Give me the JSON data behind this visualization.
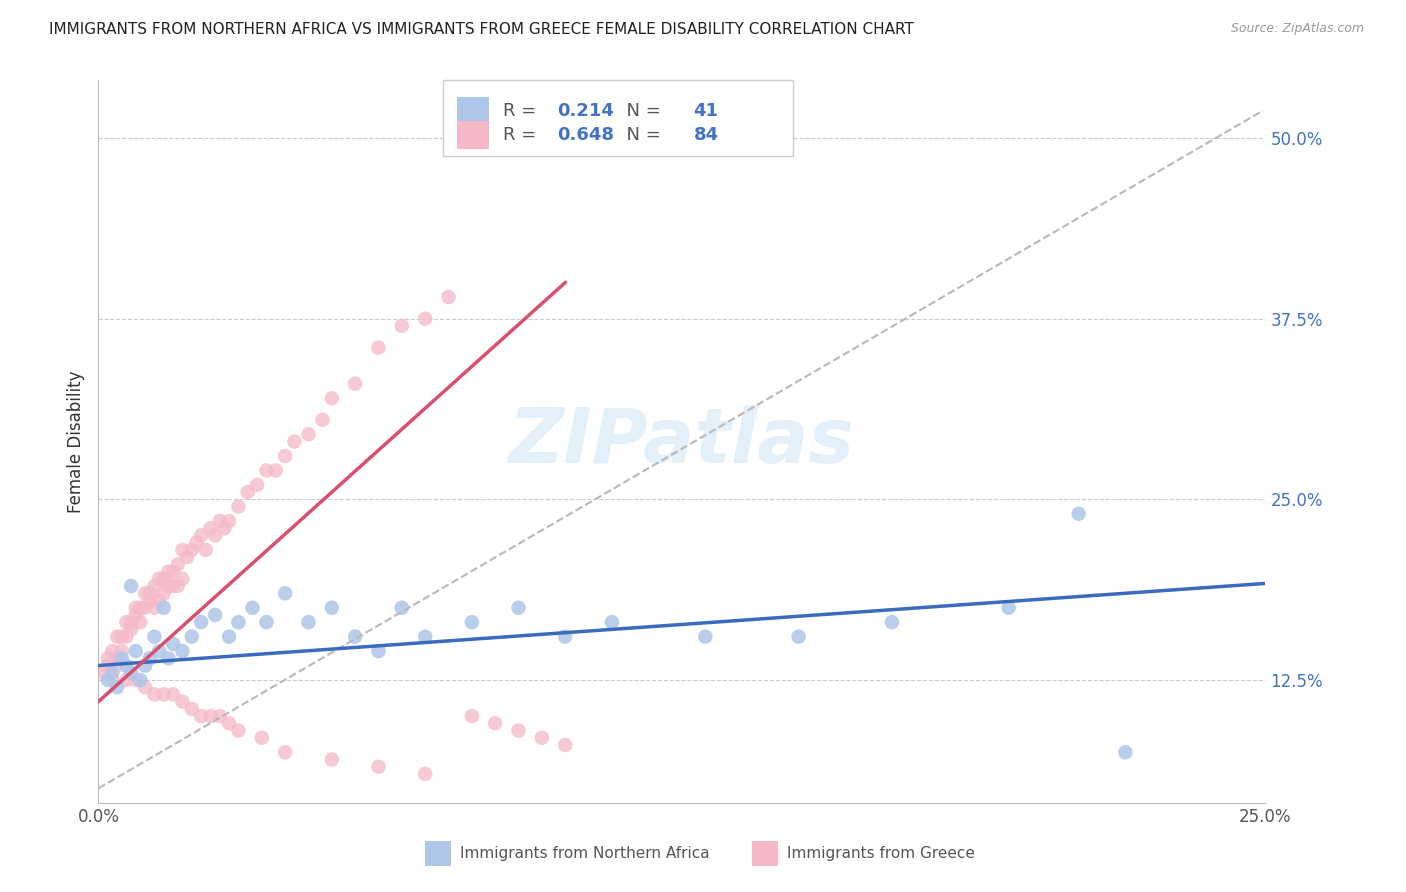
{
  "title": "IMMIGRANTS FROM NORTHERN AFRICA VS IMMIGRANTS FROM GREECE FEMALE DISABILITY CORRELATION CHART",
  "source": "Source: ZipAtlas.com",
  "xlabel_blue": "Immigrants from Northern Africa",
  "xlabel_pink": "Immigrants from Greece",
  "ylabel": "Female Disability",
  "R_blue": 0.214,
  "N_blue": 41,
  "R_pink": 0.648,
  "N_pink": 84,
  "xlim": [
    0.0,
    0.25
  ],
  "ylim": [
    0.04,
    0.54
  ],
  "yticks": [
    0.125,
    0.25,
    0.375,
    0.5
  ],
  "ytick_labels": [
    "12.5%",
    "25.0%",
    "37.5%",
    "50.0%"
  ],
  "xticks": [
    0.0,
    0.05,
    0.1,
    0.15,
    0.2,
    0.25
  ],
  "xtick_labels": [
    "0.0%",
    "",
    "",
    "",
    "",
    "25.0%"
  ],
  "watermark": "ZIPatlas",
  "color_blue": "#aec6e8",
  "color_pink": "#f5b8c8",
  "line_color_blue": "#3a6bbf",
  "line_color_pink": "#d9506e",
  "line_color_dashed": "#b8b8b8",
  "blue_scatter_x": [
    0.002,
    0.003,
    0.004,
    0.005,
    0.006,
    0.007,
    0.008,
    0.009,
    0.01,
    0.011,
    0.012,
    0.013,
    0.015,
    0.016,
    0.018,
    0.02,
    0.022,
    0.025,
    0.028,
    0.03,
    0.033,
    0.036,
    0.04,
    0.045,
    0.05,
    0.055,
    0.06,
    0.065,
    0.07,
    0.08,
    0.09,
    0.1,
    0.11,
    0.13,
    0.15,
    0.17,
    0.195,
    0.21,
    0.22,
    0.007,
    0.014
  ],
  "blue_scatter_y": [
    0.125,
    0.13,
    0.12,
    0.14,
    0.135,
    0.13,
    0.145,
    0.125,
    0.135,
    0.14,
    0.155,
    0.145,
    0.14,
    0.15,
    0.145,
    0.155,
    0.165,
    0.17,
    0.155,
    0.165,
    0.175,
    0.165,
    0.185,
    0.165,
    0.175,
    0.155,
    0.145,
    0.175,
    0.155,
    0.165,
    0.175,
    0.155,
    0.165,
    0.155,
    0.155,
    0.165,
    0.175,
    0.24,
    0.075,
    0.19,
    0.175
  ],
  "pink_scatter_x": [
    0.001,
    0.002,
    0.002,
    0.003,
    0.003,
    0.004,
    0.004,
    0.005,
    0.005,
    0.006,
    0.006,
    0.007,
    0.007,
    0.008,
    0.008,
    0.009,
    0.009,
    0.01,
    0.01,
    0.011,
    0.011,
    0.012,
    0.012,
    0.013,
    0.013,
    0.014,
    0.014,
    0.015,
    0.015,
    0.016,
    0.016,
    0.017,
    0.017,
    0.018,
    0.018,
    0.019,
    0.02,
    0.021,
    0.022,
    0.023,
    0.024,
    0.025,
    0.026,
    0.027,
    0.028,
    0.03,
    0.032,
    0.034,
    0.036,
    0.038,
    0.04,
    0.042,
    0.045,
    0.048,
    0.05,
    0.055,
    0.06,
    0.065,
    0.07,
    0.075,
    0.08,
    0.085,
    0.09,
    0.095,
    0.1,
    0.004,
    0.006,
    0.008,
    0.01,
    0.012,
    0.014,
    0.016,
    0.018,
    0.02,
    0.022,
    0.024,
    0.026,
    0.028,
    0.03,
    0.035,
    0.04,
    0.05,
    0.06,
    0.07
  ],
  "pink_scatter_y": [
    0.13,
    0.135,
    0.14,
    0.145,
    0.125,
    0.14,
    0.155,
    0.145,
    0.155,
    0.165,
    0.155,
    0.16,
    0.165,
    0.175,
    0.17,
    0.165,
    0.175,
    0.185,
    0.175,
    0.18,
    0.185,
    0.19,
    0.175,
    0.195,
    0.18,
    0.185,
    0.195,
    0.19,
    0.2,
    0.19,
    0.2,
    0.19,
    0.205,
    0.195,
    0.215,
    0.21,
    0.215,
    0.22,
    0.225,
    0.215,
    0.23,
    0.225,
    0.235,
    0.23,
    0.235,
    0.245,
    0.255,
    0.26,
    0.27,
    0.27,
    0.28,
    0.29,
    0.295,
    0.305,
    0.32,
    0.33,
    0.355,
    0.37,
    0.375,
    0.39,
    0.1,
    0.095,
    0.09,
    0.085,
    0.08,
    0.135,
    0.125,
    0.125,
    0.12,
    0.115,
    0.115,
    0.115,
    0.11,
    0.105,
    0.1,
    0.1,
    0.1,
    0.095,
    0.09,
    0.085,
    0.075,
    0.07,
    0.065,
    0.06
  ]
}
